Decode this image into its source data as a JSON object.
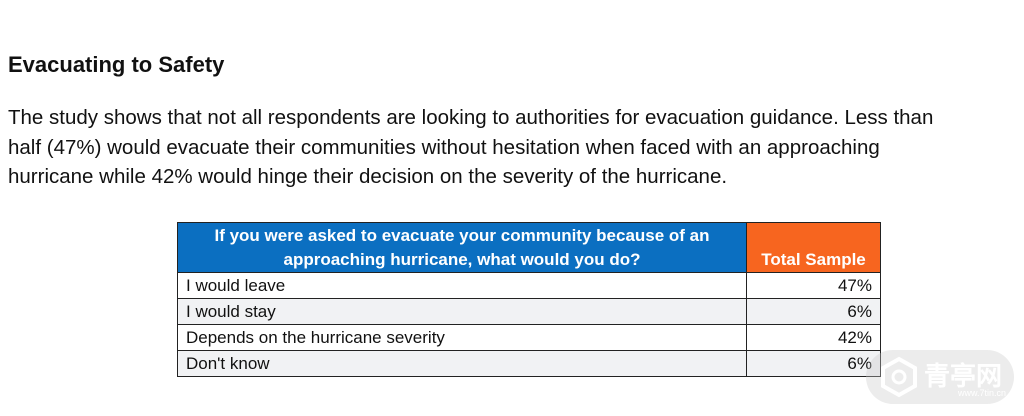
{
  "heading": "Evacuating to Safety",
  "paragraph_lines": [
    "The study shows that not all respondents are looking to authorities for evacuation guidance. Less than",
    "half (47%) would evacuate their communities without hesitation when faced with an approaching",
    "hurricane while 42% would hinge their decision on the severity of the hurricane."
  ],
  "table": {
    "header": [
      "If you were asked to evacuate your community because of an approaching hurricane, what would you do?",
      "Total Sample"
    ],
    "rows": [
      [
        "I would leave",
        "47%"
      ],
      [
        "I would stay",
        "6%"
      ],
      [
        "Depends on the hurricane severity",
        "42%"
      ],
      [
        "Don't know",
        "6%"
      ]
    ]
  },
  "watermark": {
    "name": "青亭网",
    "url": "www.7tin.cn"
  }
}
